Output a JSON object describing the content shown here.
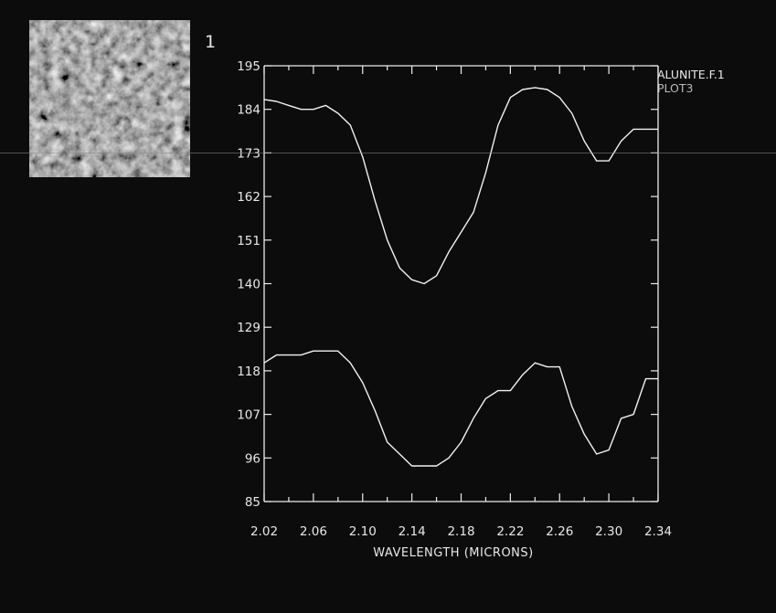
{
  "window": {
    "number": "1"
  },
  "legend": {
    "lines": [
      "ALUNITE.F.1",
      "PLOT3"
    ]
  },
  "colors": {
    "background": "#0c0c0c",
    "axis": "#ececec",
    "curve": "#f2f2f2",
    "legend_primary": "#e8e8e8",
    "legend_secondary": "#b8b8b8"
  },
  "chart_data": {
    "type": "line",
    "title": "",
    "xlabel": "WAVELENGTH (MICRONS)",
    "ylabel": "",
    "xlim": [
      2.02,
      2.34
    ],
    "ylim": [
      85,
      195
    ],
    "x_ticks": [
      "2.02",
      "2.06",
      "2.10",
      "2.14",
      "2.18",
      "2.22",
      "2.26",
      "2.30",
      "2.34"
    ],
    "y_ticks": [
      "85",
      "96",
      "107",
      "118",
      "129",
      "140",
      "151",
      "162",
      "173",
      "184",
      "195"
    ],
    "grid": false,
    "series": [
      {
        "x": [
          2.02,
          2.03,
          2.04,
          2.05,
          2.06,
          2.07,
          2.08,
          2.09,
          2.1,
          2.11,
          2.12,
          2.13,
          2.14,
          2.15,
          2.16,
          2.17,
          2.18,
          2.19,
          2.2,
          2.21,
          2.22,
          2.23,
          2.24,
          2.25,
          2.26,
          2.27,
          2.28,
          2.29,
          2.3,
          2.31,
          2.32,
          2.33,
          2.34
        ],
        "values": [
          186.5,
          186,
          185,
          184,
          184,
          185,
          183,
          180,
          172,
          161,
          151,
          144,
          141,
          140,
          142,
          148,
          153,
          158,
          168,
          180,
          187,
          189,
          189.5,
          189,
          187,
          183,
          176,
          171,
          171,
          176,
          179,
          179,
          179
        ]
      },
      {
        "x": [
          2.02,
          2.03,
          2.04,
          2.05,
          2.06,
          2.07,
          2.08,
          2.09,
          2.1,
          2.11,
          2.12,
          2.13,
          2.14,
          2.15,
          2.16,
          2.17,
          2.18,
          2.19,
          2.2,
          2.21,
          2.22,
          2.23,
          2.24,
          2.25,
          2.26,
          2.27,
          2.28,
          2.29,
          2.3,
          2.31,
          2.32,
          2.33,
          2.34
        ],
        "values": [
          120,
          122,
          122,
          122,
          123,
          123,
          123,
          120,
          115,
          108,
          100,
          97,
          94,
          94,
          94,
          96,
          100,
          106,
          111,
          113,
          113,
          117,
          120,
          119,
          119,
          109,
          102,
          97,
          98,
          106,
          107,
          116,
          116
        ]
      }
    ]
  }
}
